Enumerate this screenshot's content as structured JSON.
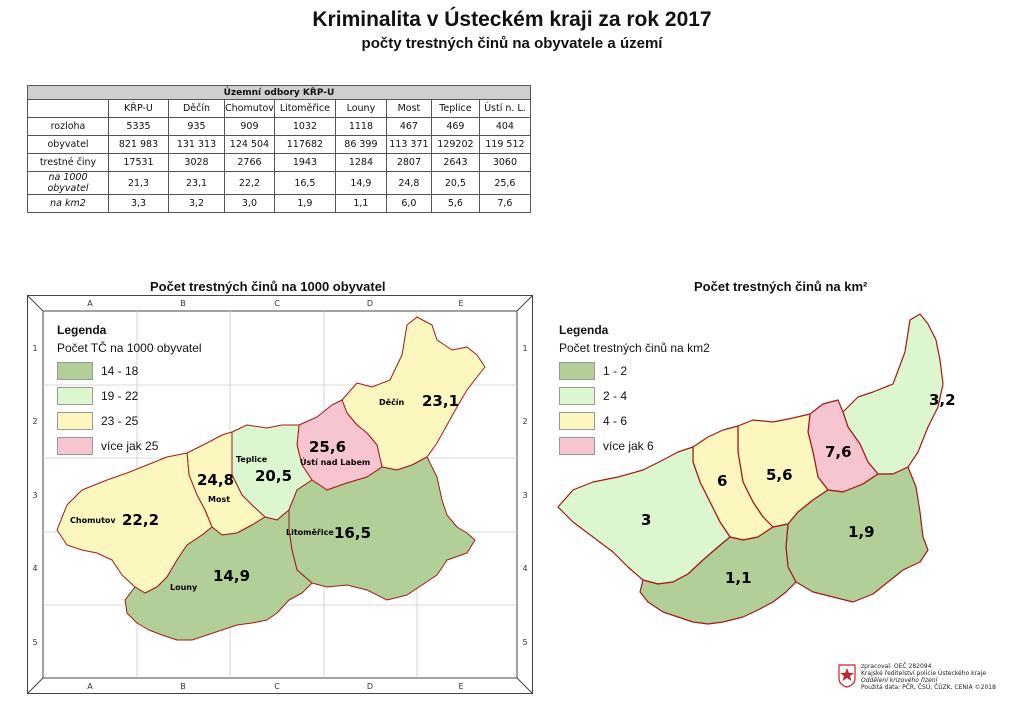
{
  "header": {
    "title": "Kriminalita v Ústeckém kraji za rok 2017",
    "subtitle": "počty trestných činů na obyvatele a území"
  },
  "table": {
    "caption": "Územní odbory KŘP-U",
    "columns": [
      "KŘP-U",
      "Děčín",
      "Chomutov",
      "Litoměřice",
      "Louny",
      "Most",
      "Teplice",
      "Ústí n. L."
    ],
    "rows": [
      {
        "label": "rozloha",
        "italic": false,
        "values": [
          "5335",
          "935",
          "909",
          "1032",
          "1118",
          "467",
          "469",
          "404"
        ]
      },
      {
        "label": "obyvatel",
        "italic": false,
        "values": [
          "821 983",
          "131 313",
          "124 504",
          "117682",
          "86 399",
          "113 371",
          "129202",
          "119 512"
        ]
      },
      {
        "label": "trestné činy",
        "italic": false,
        "values": [
          "17531",
          "3028",
          "2766",
          "1943",
          "1284",
          "2807",
          "2643",
          "3060"
        ]
      },
      {
        "label": "na 1000 obyvatel",
        "italic": true,
        "values": [
          "21,3",
          "23,1",
          "22,2",
          "16,5",
          "14,9",
          "24,8",
          "20,5",
          "25,6"
        ]
      },
      {
        "label": "na km2",
        "italic": true,
        "values": [
          "3,3",
          "3,2",
          "3,0",
          "1,9",
          "1,1",
          "6,0",
          "5,6",
          "7,6"
        ]
      }
    ]
  },
  "map_left": {
    "title": "Počet trestných činů na 1000 obyvatel",
    "grid_cols": [
      "A",
      "B",
      "C",
      "D",
      "E"
    ],
    "grid_rows": [
      "1",
      "2",
      "3",
      "4",
      "5"
    ],
    "legend": {
      "title": "Legenda",
      "subtitle": "Počet TČ na 1000 obyvatel",
      "items": [
        {
          "label": "14 - 18",
          "color": "#b3cf98"
        },
        {
          "label": "19 - 22",
          "color": "#dcf7d0"
        },
        {
          "label": "23 - 25",
          "color": "#fbf7bf"
        },
        {
          "label": "více jak 25",
          "color": "#f7c5cf"
        }
      ]
    },
    "districts": {
      "decin": {
        "name": "Děčín",
        "value": "23,1"
      },
      "usti": {
        "name": "Ústí nad Labem",
        "value": "25,6"
      },
      "teplice": {
        "name": "Teplice",
        "value": "20,5"
      },
      "most": {
        "name": "Most",
        "value": "24,8"
      },
      "chomutov": {
        "name": "Chomutov",
        "value": "22,2"
      },
      "litomerice": {
        "name": "Litoměřice",
        "value": "16,5"
      },
      "louny": {
        "name": "Louny",
        "value": "14,9"
      }
    }
  },
  "map_right": {
    "title": "Počet trestných činů na km²",
    "legend": {
      "title": "Legenda",
      "subtitle": "Počet trestných činů na km2",
      "items": [
        {
          "label": "1 - 2",
          "color": "#b3cf98"
        },
        {
          "label": "2 - 4",
          "color": "#dcf7d0"
        },
        {
          "label": "4 - 6",
          "color": "#fbf7bf"
        },
        {
          "label": "více jak 6",
          "color": "#f7c5cf"
        }
      ]
    },
    "districts": {
      "decin": {
        "value": "3,2"
      },
      "usti": {
        "value": "7,6"
      },
      "teplice": {
        "value": "5,6"
      },
      "most": {
        "value": "6"
      },
      "chomutov": {
        "value": "3"
      },
      "litomerice": {
        "value": "1,9"
      },
      "louny": {
        "value": "1,1"
      }
    }
  },
  "colors": {
    "green_dark": "#b3cf98",
    "green_light": "#dcf7d0",
    "yellow": "#fbf7bf",
    "pink": "#f7c5cf",
    "border": "#b01818"
  },
  "credits": {
    "line1": "zpracoval: OEČ 282094",
    "line2": "Krajské ředitelství policie Ústeckého kraje",
    "line3": "Oddělení krizového řízení",
    "line4": "Použitá data: PČR, ČSÚ, ČÚZK, CENIA ©2018"
  }
}
